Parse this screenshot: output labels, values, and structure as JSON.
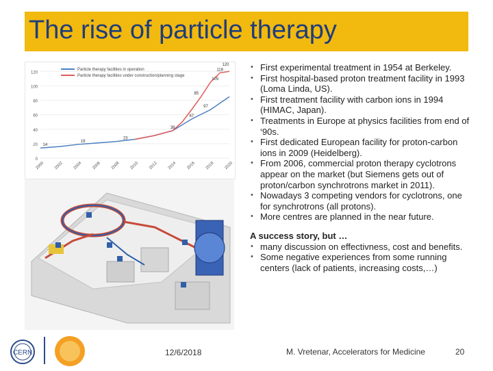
{
  "slide": {
    "title": "The rise of particle therapy",
    "bullets": [
      "First experimental treatment in 1954 at Berkeley.",
      "First hospital-based proton treatment facility in 1993 (Loma Linda, US).",
      "First treatment facility with carbon ions in 1994 (HIMAC, Japan).",
      "Treatments in Europe at physics facilities from end of ‘90s.",
      "First dedicated European facility for proton-carbon ions in 2009 (Heidelberg).",
      "From 2006, commercial proton therapy cyclotrons appear on the market (but Siemens gets out of proton/carbon synchrotrons market in 2011).",
      "Nowadays 3 competing vendors for cyclotrons, one for synchrotrons (all protons).",
      "More centres are planned in the near future."
    ],
    "success_heading": "A success story, but …",
    "success_bullets": [
      "many discussion on effectivness, cost and benefits.",
      "Some negative experiences from some running centers (lack of patients, increasing costs,…)"
    ],
    "footer": {
      "date": "12/6/2018",
      "author": "M. Vretenar, Accelerators for Medicine",
      "page": "20"
    },
    "colors": {
      "title_bar": "#f2b90f",
      "title_text": "#1f3d7a"
    }
  },
  "chart_data": {
    "type": "line",
    "legend": [
      "Particle therapy facilities in operation",
      "Particle therapy facilities under construction/planning stage"
    ],
    "y_ticks": [
      "120",
      "100",
      "80",
      "60",
      "40",
      "20",
      "0"
    ],
    "x_ticks": [
      "2000",
      "2002",
      "2004",
      "2006",
      "2008",
      "2010",
      "2012",
      "2014",
      "2016",
      "2018",
      "2020"
    ],
    "ylim": [
      0,
      125
    ],
    "xlim": [
      2000,
      2020
    ],
    "series": [
      {
        "name": "Particle therapy facilities in operation",
        "color": "#4a7fc1",
        "x": [
          2000,
          2002,
          2004,
          2006,
          2008,
          2010,
          2012,
          2014,
          2016,
          2018,
          2020
        ],
        "y": [
          14,
          16,
          19,
          21,
          23,
          26,
          31,
          38,
          54,
          67,
          85
        ]
      },
      {
        "name": "Particle therapy facilities under construction/planning stage",
        "color": "#e05a5a",
        "x": [
          2010,
          2012,
          2014,
          2015,
          2016,
          2017,
          2018,
          2019,
          2020
        ],
        "y": [
          26,
          31,
          38,
          50,
          67,
          85,
          105,
          118,
          120
        ]
      }
    ],
    "point_labels": [
      {
        "text": "14",
        "x": 2000.5,
        "y": 14
      },
      {
        "text": "19",
        "x": 2004.5,
        "y": 19
      },
      {
        "text": "23",
        "x": 2009,
        "y": 23
      },
      {
        "text": "38",
        "x": 2014,
        "y": 38
      },
      {
        "text": "67",
        "x": 2016,
        "y": 54
      },
      {
        "text": "85",
        "x": 2016.5,
        "y": 85
      },
      {
        "text": "97",
        "x": 2017.5,
        "y": 67
      },
      {
        "text": "105",
        "x": 2018.5,
        "y": 105
      },
      {
        "text": "118",
        "x": 2019,
        "y": 118
      },
      {
        "text": "120",
        "x": 2019.6,
        "y": 125
      }
    ]
  }
}
